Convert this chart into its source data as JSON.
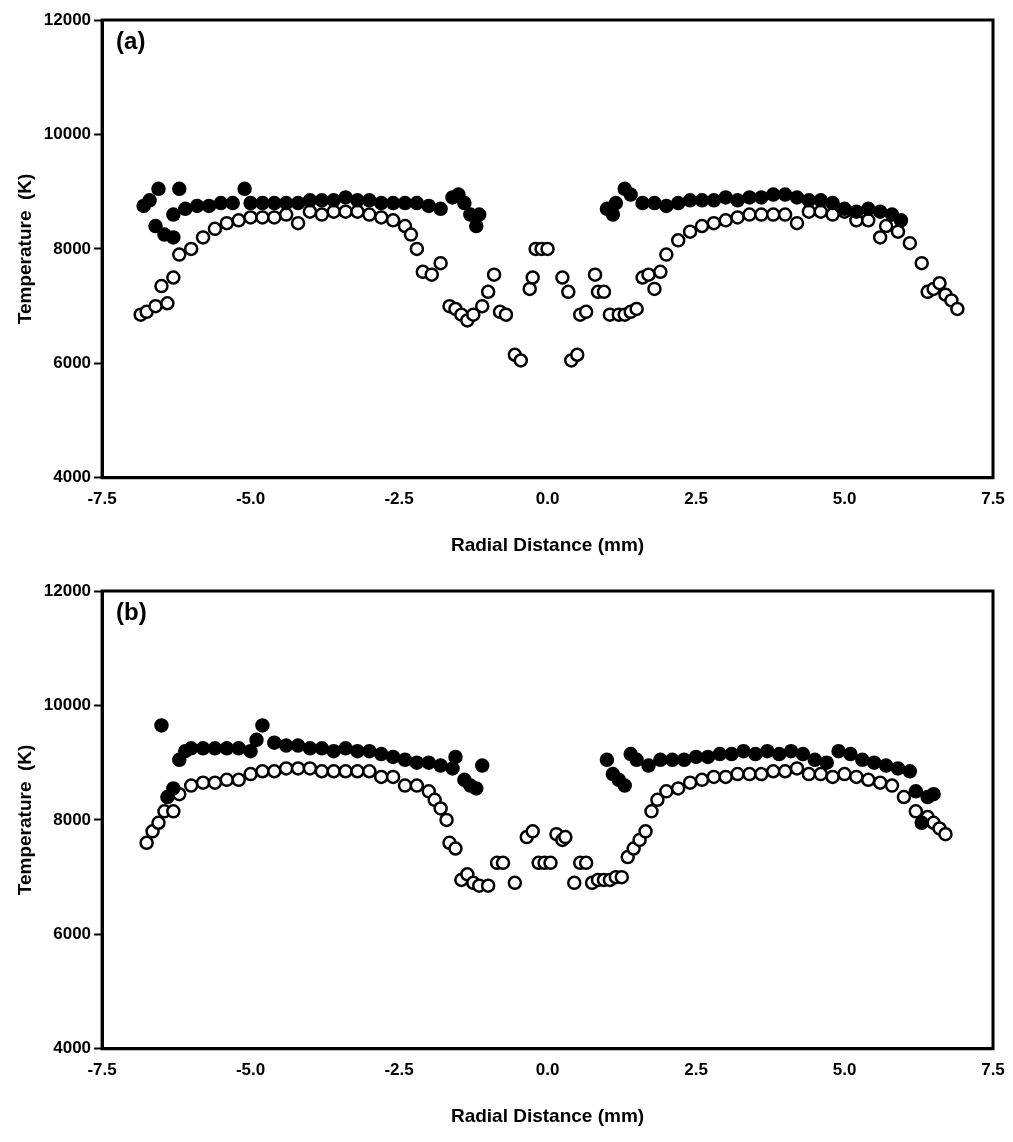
{
  "chart_data": [
    {
      "type": "scatter",
      "xlabel": "Radial Distance (mm)",
      "ylabel": "Temperature  (K)",
      "annotations": [
        "(a)"
      ],
      "marker": "circle",
      "grid": false,
      "legend": false,
      "xlim": [
        -7.5,
        7.5
      ],
      "xticks": [
        -7.5,
        {
          "value": -5,
          "label": "-5.0"
        },
        -2.5,
        {
          "value": 0,
          "label": "0.0"
        },
        2.5,
        {
          "value": 5,
          "label": "5.0"
        },
        7.5
      ],
      "ylim": [
        4000,
        12000
      ],
      "yticks": [
        4000,
        6000,
        8000,
        10000,
        12000
      ],
      "series": [
        {
          "color": "#000000",
          "x": [
            -6.8,
            -6.7,
            -6.55,
            -6.6,
            -6.45,
            -6.3,
            -6.2,
            -6.3,
            -6.1,
            -5.9,
            -5.7,
            -5.5,
            -5.3,
            -5.1,
            -5.0,
            -4.8,
            -4.6,
            -4.4,
            -4.2,
            -4.0,
            -3.8,
            -3.6,
            -3.4,
            -3.2,
            -3.0,
            -2.8,
            -2.6,
            -2.4,
            -2.2,
            -2.0,
            -1.8,
            -1.6,
            -1.5,
            -1.4,
            -1.3,
            -1.2,
            -1.15,
            1.0,
            1.1,
            1.15,
            1.3,
            1.4,
            1.6,
            1.8,
            2.0,
            2.2,
            2.4,
            2.6,
            2.8,
            3.0,
            3.2,
            3.4,
            3.6,
            3.8,
            4.0,
            4.2,
            4.4,
            4.6,
            4.8,
            5.0,
            5.2,
            5.4,
            5.6,
            5.8,
            5.95
          ],
          "values": [
            8750,
            8850,
            9050,
            8400,
            8250,
            8200,
            9050,
            8600,
            8700,
            8750,
            8750,
            8800,
            8800,
            9050,
            8800,
            8800,
            8800,
            8800,
            8800,
            8850,
            8850,
            8850,
            8900,
            8850,
            8850,
            8800,
            8800,
            8800,
            8800,
            8750,
            8700,
            8900,
            8950,
            8800,
            8600,
            8400,
            8600,
            8700,
            8600,
            8800,
            9050,
            8950,
            8800,
            8800,
            8750,
            8800,
            8850,
            8850,
            8850,
            8900,
            8850,
            8900,
            8900,
            8950,
            8950,
            8900,
            8850,
            8850,
            8800,
            8700,
            8650,
            8700,
            8650,
            8600,
            8500
          ]
        },
        {
          "color": "#000000",
          "x": [
            -6.85,
            -6.75,
            -6.6,
            -6.5,
            -6.4,
            -6.3,
            -6.2,
            -6.0,
            -5.8,
            -5.6,
            -5.4,
            -5.2,
            -5.0,
            -4.8,
            -4.6,
            -4.4,
            -4.2,
            -4.0,
            -3.8,
            -3.6,
            -3.4,
            -3.2,
            -3.0,
            -2.8,
            -2.6,
            -2.4,
            -2.3,
            -2.2,
            -2.1,
            -1.95,
            -1.8,
            -1.65,
            -1.55,
            -1.45,
            -1.35,
            -1.25,
            -1.1,
            -1.0,
            -0.9,
            -0.8,
            -0.7,
            -0.55,
            -0.45,
            -0.3,
            -0.25,
            -0.2,
            -0.1,
            0.0,
            0.25,
            0.35,
            0.4,
            0.5,
            0.55,
            0.65,
            0.8,
            0.85,
            0.95,
            1.05,
            1.2,
            1.3,
            1.4,
            1.5,
            1.6,
            1.7,
            1.8,
            1.9,
            2.0,
            2.2,
            2.4,
            2.6,
            2.8,
            3.0,
            3.2,
            3.4,
            3.6,
            3.8,
            4.0,
            4.2,
            4.4,
            4.6,
            4.8,
            5.0,
            5.2,
            5.4,
            5.6,
            5.7,
            5.9,
            6.1,
            6.3,
            6.4,
            6.5,
            6.6,
            6.7,
            6.8,
            6.9
          ],
          "values": [
            6850,
            6900,
            7000,
            7350,
            7050,
            7500,
            7900,
            8000,
            8200,
            8350,
            8450,
            8500,
            8550,
            8550,
            8550,
            8600,
            8450,
            8650,
            8600,
            8650,
            8650,
            8650,
            8600,
            8550,
            8500,
            8400,
            8250,
            8000,
            7600,
            7550,
            7750,
            7000,
            6950,
            6850,
            6750,
            6850,
            7000,
            7250,
            7550,
            6900,
            6850,
            6150,
            6050,
            7300,
            7500,
            8000,
            8000,
            8000,
            7500,
            7250,
            6050,
            6150,
            6850,
            6900,
            7550,
            7250,
            7250,
            6850,
            6850,
            6850,
            6900,
            6950,
            7500,
            7550,
            7300,
            7600,
            7900,
            8150,
            8300,
            8400,
            8450,
            8500,
            8550,
            8600,
            8600,
            8600,
            8600,
            8450,
            8650,
            8650,
            8600,
            8650,
            8500,
            8500,
            8200,
            8400,
            8300,
            8100,
            7750,
            7250,
            7300,
            7400,
            7200,
            7100,
            6950
          ]
        }
      ]
    },
    {
      "type": "scatter",
      "xlabel": "Radial Distance (mm)",
      "ylabel": "Temperature  (K)",
      "annotations": [
        "(b)"
      ],
      "marker": "circle",
      "grid": false,
      "legend": false,
      "xlim": [
        -7.5,
        7.5
      ],
      "xticks": [
        -7.5,
        {
          "value": -5,
          "label": "-5.0"
        },
        -2.5,
        {
          "value": 0,
          "label": "0.0"
        },
        2.5,
        {
          "value": 5,
          "label": "5.0"
        },
        7.5
      ],
      "ylim": [
        4000,
        12000
      ],
      "yticks": [
        4000,
        6000,
        8000,
        10000,
        12000
      ],
      "series": [
        {
          "color": "#000000",
          "x": [
            -6.5,
            -6.4,
            -6.3,
            -6.2,
            -6.1,
            -6.0,
            -5.8,
            -5.6,
            -5.4,
            -5.2,
            -5.0,
            -4.9,
            -4.8,
            -4.6,
            -4.4,
            -4.2,
            -4.0,
            -3.8,
            -3.6,
            -3.4,
            -3.2,
            -3.0,
            -2.8,
            -2.6,
            -2.4,
            -2.2,
            -2.0,
            -1.8,
            -1.6,
            -1.55,
            -1.4,
            -1.3,
            -1.2,
            -1.1,
            1.0,
            1.1,
            1.2,
            1.3,
            1.4,
            1.5,
            1.7,
            1.9,
            2.1,
            2.3,
            2.5,
            2.7,
            2.9,
            3.1,
            3.3,
            3.5,
            3.7,
            3.9,
            4.1,
            4.3,
            4.5,
            4.7,
            4.9,
            5.1,
            5.3,
            5.5,
            5.7,
            5.9,
            6.1,
            6.2,
            6.3,
            6.4,
            6.5
          ],
          "values": [
            9650,
            8400,
            8550,
            9050,
            9200,
            9250,
            9250,
            9250,
            9250,
            9250,
            9200,
            9400,
            9650,
            9350,
            9300,
            9300,
            9250,
            9250,
            9200,
            9250,
            9200,
            9200,
            9150,
            9100,
            9050,
            9000,
            9000,
            8950,
            8900,
            9100,
            8700,
            8600,
            8550,
            8950,
            9050,
            8800,
            8700,
            8600,
            9150,
            9050,
            8950,
            9050,
            9050,
            9050,
            9100,
            9100,
            9150,
            9150,
            9200,
            9150,
            9200,
            9150,
            9200,
            9150,
            9050,
            9000,
            9200,
            9150,
            9050,
            9000,
            8950,
            8900,
            8850,
            8500,
            7950,
            8400,
            8450
          ]
        },
        {
          "color": "#000000",
          "x": [
            -6.75,
            -6.65,
            -6.55,
            -6.45,
            -6.3,
            -6.2,
            -6.0,
            -5.8,
            -5.6,
            -5.4,
            -5.2,
            -5.0,
            -4.8,
            -4.6,
            -4.4,
            -4.2,
            -4.0,
            -3.8,
            -3.6,
            -3.4,
            -3.2,
            -3.0,
            -2.8,
            -2.6,
            -2.4,
            -2.2,
            -2.0,
            -1.9,
            -1.8,
            -1.7,
            -1.65,
            -1.55,
            -1.45,
            -1.35,
            -1.25,
            -1.15,
            -1.0,
            -0.85,
            -0.75,
            -0.55,
            -0.35,
            -0.25,
            -0.15,
            -0.05,
            0.05,
            0.15,
            0.25,
            0.3,
            0.45,
            0.55,
            0.65,
            0.75,
            0.85,
            0.95,
            1.05,
            1.15,
            1.25,
            1.35,
            1.45,
            1.55,
            1.65,
            1.75,
            1.85,
            2.0,
            2.2,
            2.4,
            2.6,
            2.8,
            3.0,
            3.2,
            3.4,
            3.6,
            3.8,
            4.0,
            4.2,
            4.4,
            4.6,
            4.8,
            5.0,
            5.2,
            5.4,
            5.6,
            5.8,
            6.0,
            6.2,
            6.4,
            6.5,
            6.6,
            6.7
          ],
          "values": [
            7600,
            7800,
            7950,
            8150,
            8150,
            8450,
            8600,
            8650,
            8650,
            8700,
            8700,
            8800,
            8850,
            8850,
            8900,
            8900,
            8900,
            8850,
            8850,
            8850,
            8850,
            8850,
            8750,
            8750,
            8600,
            8600,
            8500,
            8350,
            8200,
            8000,
            7600,
            7500,
            6950,
            7050,
            6900,
            6850,
            6850,
            7250,
            7250,
            6900,
            7700,
            7800,
            7250,
            7250,
            7250,
            7750,
            7650,
            7700,
            6900,
            7250,
            7250,
            6900,
            6950,
            6950,
            6950,
            7000,
            7000,
            7350,
            7500,
            7650,
            7800,
            8150,
            8350,
            8500,
            8550,
            8650,
            8700,
            8750,
            8750,
            8800,
            8800,
            8800,
            8850,
            8850,
            8900,
            8800,
            8800,
            8750,
            8800,
            8750,
            8700,
            8650,
            8600,
            8400,
            8150,
            8050,
            7950,
            7850,
            7750
          ]
        }
      ]
    }
  ]
}
